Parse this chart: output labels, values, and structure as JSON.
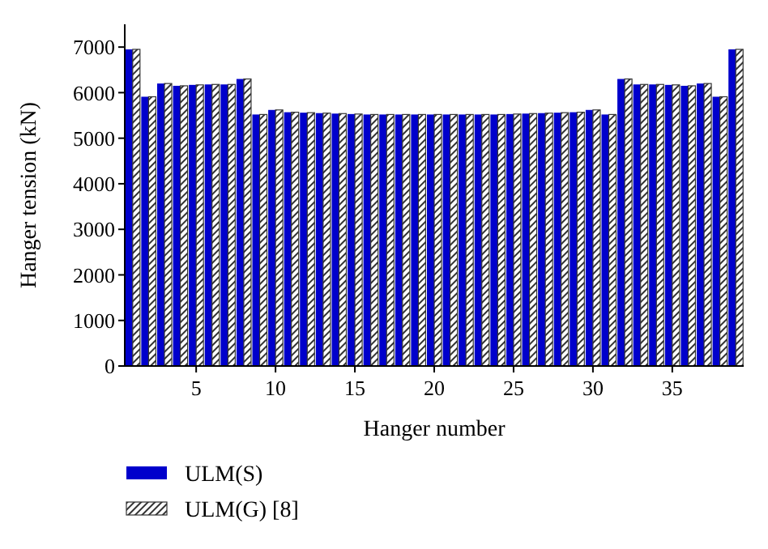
{
  "chart_data": {
    "type": "bar",
    "xlabel": "Hanger number",
    "ylabel": "Hanger tension (kN)",
    "x": [
      1,
      2,
      3,
      4,
      5,
      6,
      7,
      8,
      9,
      10,
      11,
      12,
      13,
      14,
      15,
      16,
      17,
      18,
      19,
      20,
      21,
      22,
      23,
      24,
      25,
      26,
      27,
      28,
      29,
      30,
      31,
      32,
      33,
      34,
      35,
      36,
      37,
      38,
      39
    ],
    "xlim": [
      0.5,
      39.5
    ],
    "xticks": [
      5,
      10,
      15,
      20,
      25,
      30,
      35
    ],
    "ylim": [
      0,
      7500
    ],
    "yticks": [
      0,
      1000,
      2000,
      3000,
      4000,
      5000,
      6000,
      7000
    ],
    "series": [
      {
        "name": "ULM(S)",
        "color": "#0000cc",
        "values": [
          6950,
          5910,
          6200,
          6150,
          6170,
          6180,
          6180,
          6300,
          5520,
          5620,
          5570,
          5560,
          5550,
          5540,
          5530,
          5520,
          5520,
          5520,
          5520,
          5520,
          5520,
          5520,
          5520,
          5520,
          5530,
          5540,
          5550,
          5560,
          5570,
          5620,
          5520,
          6300,
          6180,
          6180,
          6170,
          6150,
          6200,
          5910,
          6950
        ]
      },
      {
        "name": "ULM(G) [8]",
        "color": "#333333",
        "values": [
          6950,
          5910,
          6200,
          6150,
          6170,
          6180,
          6180,
          6300,
          5520,
          5620,
          5570,
          5560,
          5550,
          5540,
          5530,
          5520,
          5520,
          5520,
          5520,
          5520,
          5520,
          5520,
          5520,
          5520,
          5530,
          5540,
          5550,
          5560,
          5570,
          5620,
          5520,
          6300,
          6180,
          6180,
          6170,
          6150,
          6200,
          5910,
          6950
        ]
      }
    ],
    "legend": "bottom left",
    "grid": false
  }
}
